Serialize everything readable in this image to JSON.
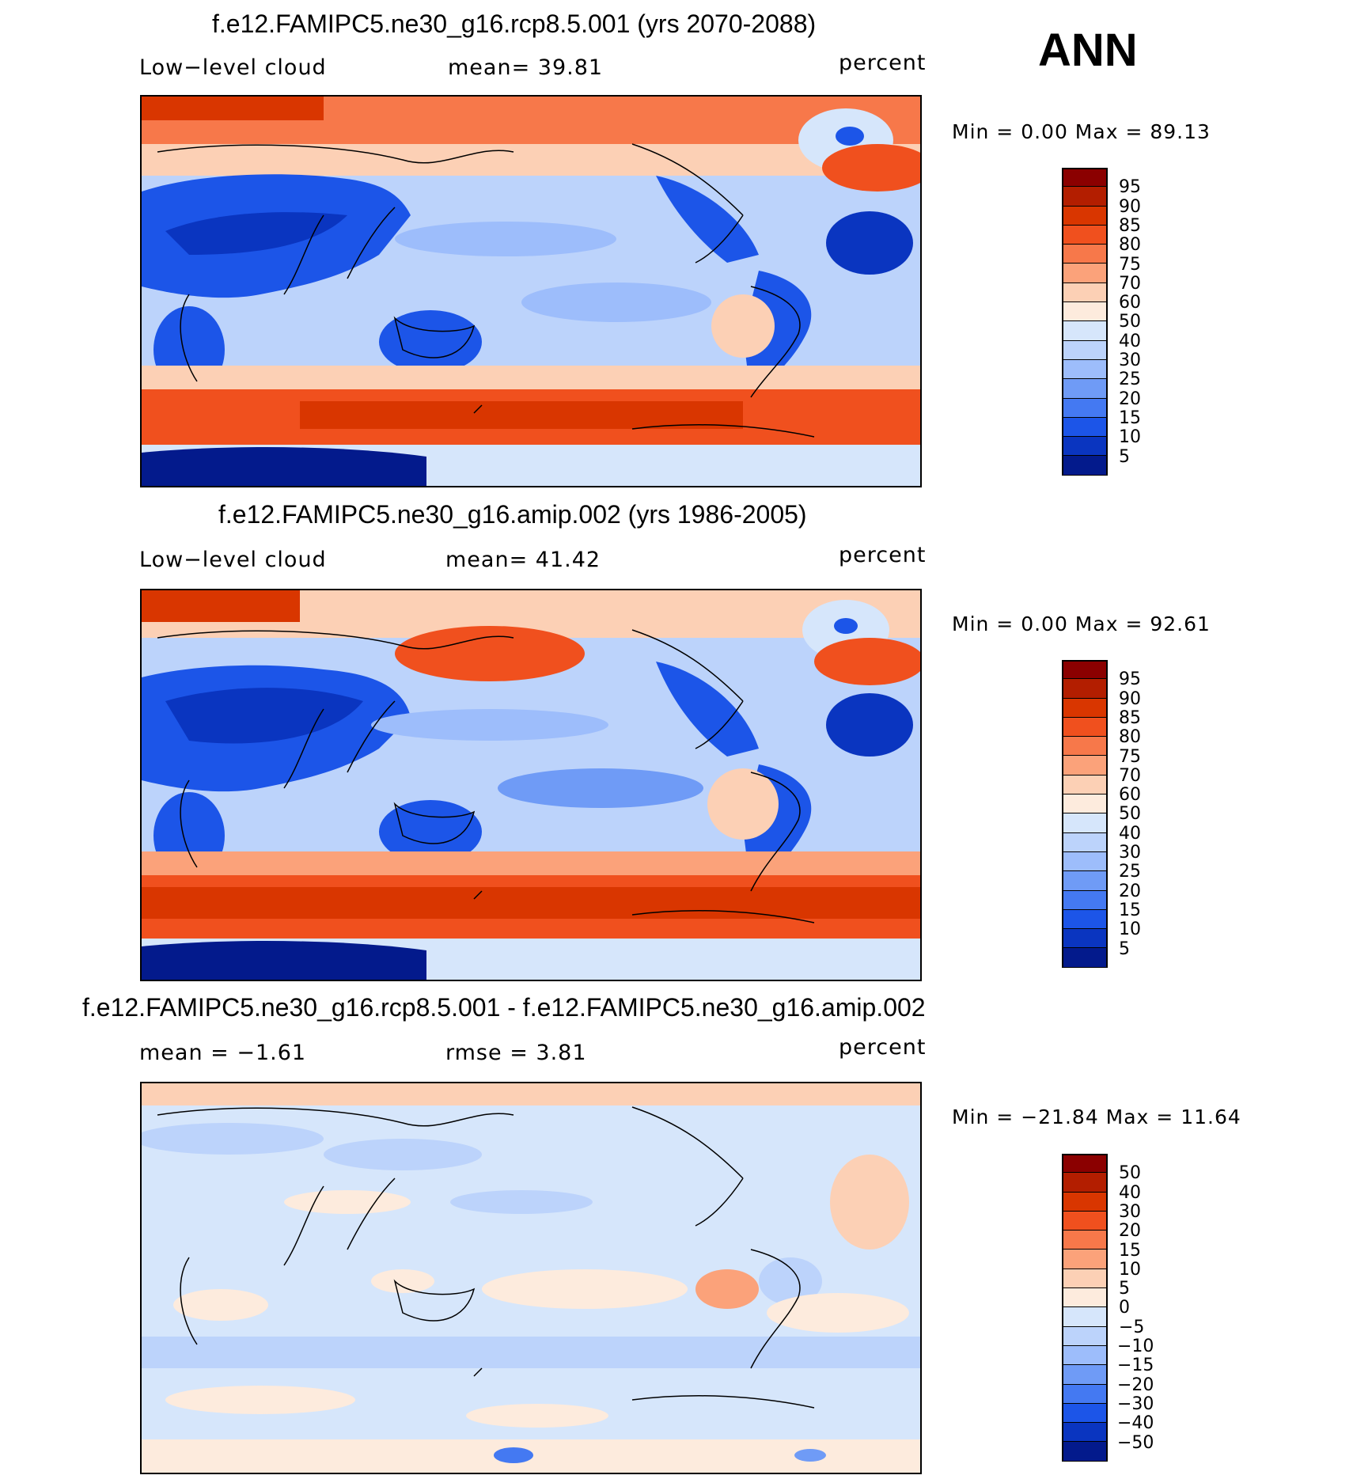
{
  "season": "ANN",
  "panels": [
    {
      "title": "f.e12.FAMIPC5.ne30_g16.rcp8.5.001 (yrs 2070-2088)",
      "left_label": "Low−level cloud",
      "mid_label": "mean=   39.81",
      "right_label": "percent",
      "minmax": "Min =     0.00 Max =   89.13",
      "colorbar": {
        "colors": [
          "#8b0000",
          "#b31e00",
          "#d93600",
          "#f0501e",
          "#f7784a",
          "#fba27a",
          "#fcd0b5",
          "#fdebdd",
          "#d6e6fb",
          "#bcd3fb",
          "#9dbdfb",
          "#6f9bf6",
          "#4479f2",
          "#1c55e8",
          "#0a35c0",
          "#031a8c"
        ],
        "labels": [
          "95",
          "90",
          "85",
          "80",
          "75",
          "70",
          "60",
          "50",
          "40",
          "30",
          "25",
          "20",
          "15",
          "10",
          "5"
        ]
      }
    },
    {
      "title": "f.e12.FAMIPC5.ne30_g16.amip.002 (yrs 1986-2005)",
      "left_label": "Low−level cloud",
      "mid_label": "mean=   41.42",
      "right_label": "percent",
      "minmax": "Min =     0.00 Max =   92.61",
      "colorbar": {
        "colors": [
          "#8b0000",
          "#b31e00",
          "#d93600",
          "#f0501e",
          "#f7784a",
          "#fba27a",
          "#fcd0b5",
          "#fdebdd",
          "#d6e6fb",
          "#bcd3fb",
          "#9dbdfb",
          "#6f9bf6",
          "#4479f2",
          "#1c55e8",
          "#0a35c0",
          "#031a8c"
        ],
        "labels": [
          "95",
          "90",
          "85",
          "80",
          "75",
          "70",
          "60",
          "50",
          "40",
          "30",
          "25",
          "20",
          "15",
          "10",
          "5"
        ]
      }
    },
    {
      "title": "f.e12.FAMIPC5.ne30_g16.rcp8.5.001 - f.e12.FAMIPC5.ne30_g16.amip.002",
      "left_label": "mean =   −1.61",
      "mid_label": "rmse =     3.81",
      "right_label": "percent",
      "minmax": "Min = −21.84 Max =   11.64",
      "colorbar": {
        "colors": [
          "#8b0000",
          "#b31e00",
          "#d93600",
          "#f0501e",
          "#f7784a",
          "#fba27a",
          "#fcd0b5",
          "#fdebdd",
          "#d6e6fb",
          "#bcd3fb",
          "#9dbdfb",
          "#6f9bf6",
          "#4479f2",
          "#1c55e8",
          "#0a35c0",
          "#031a8c"
        ],
        "labels": [
          "50",
          "40",
          "30",
          "20",
          "15",
          "10",
          "5",
          "0",
          "−5",
          "−10",
          "−15",
          "−20",
          "−30",
          "−40",
          "−50"
        ]
      }
    }
  ]
}
